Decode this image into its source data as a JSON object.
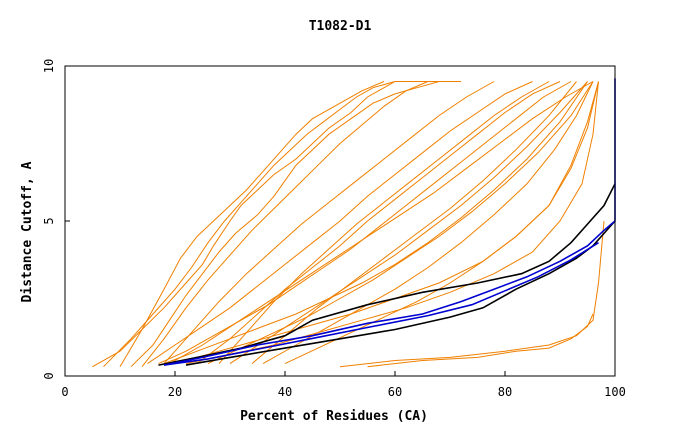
{
  "chart_data": {
    "type": "line",
    "title": "T1082-D1",
    "xlabel": "Percent of Residues (CA)",
    "ylabel": "Distance Cutoff, A",
    "xlim": [
      0,
      100
    ],
    "ylim": [
      0,
      10
    ],
    "x_ticks": [
      0,
      20,
      40,
      60,
      80,
      100
    ],
    "y_ticks": [
      0,
      5,
      10
    ],
    "grid": false,
    "legend": "none",
    "colors": {
      "orange": "#f08000",
      "black": "#000000",
      "blue": "#0000d0",
      "frame": "#000000"
    },
    "series": [
      {
        "color": "orange",
        "x": [
          5,
          10,
          14,
          18,
          22,
          25,
          27,
          30,
          32,
          35,
          38,
          42,
          45,
          48,
          52,
          55,
          58,
          60,
          62,
          64,
          66,
          68,
          70
        ],
        "y": [
          0.3,
          0.8,
          1.5,
          2.2,
          3.0,
          3.6,
          4.2,
          5.0,
          5.5,
          6.0,
          6.5,
          7.0,
          7.5,
          8.0,
          8.5,
          9.0,
          9.3,
          9.5,
          9.5,
          9.5,
          9.5,
          9.5,
          9.5
        ]
      },
      {
        "color": "orange",
        "x": [
          7,
          12,
          16,
          20,
          23,
          26,
          29,
          32,
          35,
          38,
          41,
          44,
          47,
          50,
          53,
          56,
          60
        ],
        "y": [
          0.3,
          1.2,
          2.0,
          2.8,
          3.5,
          4.3,
          5.0,
          5.6,
          6.2,
          6.8,
          7.3,
          7.8,
          8.2,
          8.6,
          9.0,
          9.3,
          9.5
        ]
      },
      {
        "color": "orange",
        "x": [
          12,
          16,
          19,
          22,
          25,
          28,
          31,
          35,
          38,
          40,
          42,
          45,
          48,
          52,
          56,
          60,
          64,
          68,
          72
        ],
        "y": [
          0.3,
          1.0,
          1.8,
          2.6,
          3.3,
          4.0,
          4.6,
          5.2,
          5.8,
          6.3,
          6.8,
          7.3,
          7.8,
          8.3,
          8.8,
          9.1,
          9.3,
          9.5,
          9.5
        ]
      },
      {
        "color": "orange",
        "x": [
          15,
          20,
          25,
          30,
          35,
          40,
          45,
          50,
          55,
          60,
          65,
          70,
          75,
          80,
          85
        ],
        "y": [
          0.4,
          1.0,
          1.6,
          2.2,
          2.9,
          3.6,
          4.3,
          5.0,
          5.8,
          6.5,
          7.2,
          7.9,
          8.5,
          9.1,
          9.5
        ]
      },
      {
        "color": "orange",
        "x": [
          17,
          22,
          27,
          32,
          37,
          42,
          47,
          52,
          57,
          62,
          67,
          72,
          77,
          82,
          87,
          92
        ],
        "y": [
          0.4,
          0.8,
          1.3,
          1.8,
          2.3,
          2.9,
          3.5,
          4.1,
          4.8,
          5.5,
          6.2,
          6.9,
          7.6,
          8.3,
          9.0,
          9.5
        ]
      },
      {
        "color": "orange",
        "x": [
          18,
          24,
          30,
          36,
          42,
          48,
          54,
          60,
          66,
          72,
          78,
          84,
          90,
          95
        ],
        "y": [
          0.4,
          0.8,
          1.2,
          1.6,
          2.0,
          2.5,
          3.0,
          3.6,
          4.3,
          5.1,
          6.0,
          7.0,
          8.2,
          9.5
        ]
      },
      {
        "color": "orange",
        "x": [
          20,
          28,
          36,
          44,
          52,
          60,
          68,
          76,
          82,
          88,
          92,
          95,
          97
        ],
        "y": [
          0.4,
          0.8,
          1.2,
          1.6,
          2.0,
          2.5,
          3.0,
          3.7,
          4.5,
          5.5,
          6.8,
          8.2,
          9.5
        ]
      },
      {
        "color": "orange",
        "x": [
          22,
          30,
          38,
          46,
          54,
          62,
          70,
          78,
          85,
          90,
          94,
          96,
          97
        ],
        "y": [
          0.4,
          0.7,
          1.0,
          1.4,
          1.8,
          2.2,
          2.7,
          3.3,
          4.0,
          5.0,
          6.2,
          7.8,
          9.5
        ]
      },
      {
        "color": "orange",
        "x": [
          10,
          14,
          18,
          21,
          24,
          27,
          30,
          33,
          36,
          39,
          42,
          45,
          50,
          54,
          58
        ],
        "y": [
          0.3,
          1.5,
          2.8,
          3.8,
          4.5,
          5.0,
          5.5,
          6.0,
          6.6,
          7.2,
          7.8,
          8.3,
          8.8,
          9.2,
          9.5
        ]
      },
      {
        "color": "orange",
        "x": [
          24,
          30,
          35,
          40,
          45,
          50,
          55,
          60,
          65,
          70,
          75,
          80,
          85,
          90
        ],
        "y": [
          0.4,
          1.2,
          2.0,
          2.8,
          3.5,
          4.2,
          5.0,
          5.7,
          6.4,
          7.1,
          7.8,
          8.5,
          9.1,
          9.5
        ]
      },
      {
        "color": "orange",
        "x": [
          28,
          33,
          38,
          43,
          48,
          53,
          58,
          63,
          68,
          73,
          78,
          83,
          88
        ],
        "y": [
          0.4,
          1.4,
          2.4,
          3.3,
          4.1,
          4.9,
          5.6,
          6.3,
          7.0,
          7.7,
          8.4,
          9.0,
          9.5
        ]
      },
      {
        "color": "orange",
        "x": [
          30,
          36,
          42,
          48,
          54,
          60,
          66,
          72,
          78,
          84,
          90,
          95
        ],
        "y": [
          0.4,
          1.1,
          1.8,
          2.5,
          3.2,
          3.9,
          4.7,
          5.5,
          6.4,
          7.4,
          8.5,
          9.5
        ]
      },
      {
        "color": "orange",
        "x": [
          14,
          18,
          22,
          26,
          30,
          34,
          38,
          42,
          46,
          50,
          54,
          58,
          62,
          66
        ],
        "y": [
          0.3,
          1.2,
          2.2,
          3.1,
          3.9,
          4.7,
          5.4,
          6.1,
          6.8,
          7.5,
          8.1,
          8.7,
          9.2,
          9.5
        ]
      },
      {
        "color": "orange",
        "x": [
          19,
          25,
          31,
          37,
          43,
          49,
          55,
          61,
          67,
          73,
          79,
          85,
          91,
          96
        ],
        "y": [
          0.4,
          1.0,
          1.7,
          2.4,
          3.1,
          3.8,
          4.5,
          5.2,
          5.9,
          6.7,
          7.5,
          8.3,
          9.0,
          9.5
        ]
      },
      {
        "color": "orange",
        "x": [
          26,
          32,
          38,
          44,
          50,
          56,
          62,
          68,
          74,
          80,
          86,
          92,
          96
        ],
        "y": [
          0.4,
          0.9,
          1.4,
          1.9,
          2.5,
          3.1,
          3.8,
          4.5,
          5.3,
          6.2,
          7.2,
          8.4,
          9.5
        ]
      },
      {
        "color": "orange",
        "x": [
          34,
          40,
          46,
          52,
          58,
          64,
          70,
          76,
          82,
          88,
          93
        ],
        "y": [
          0.4,
          1.3,
          2.2,
          3.0,
          3.8,
          4.6,
          5.4,
          6.3,
          7.3,
          8.4,
          9.5
        ]
      },
      {
        "color": "orange",
        "x": [
          18,
          23,
          28,
          33,
          38,
          43,
          48,
          53,
          58,
          63,
          68,
          73,
          78
        ],
        "y": [
          0.4,
          1.4,
          2.4,
          3.3,
          4.1,
          4.9,
          5.6,
          6.3,
          7.0,
          7.7,
          8.4,
          9.0,
          9.5
        ]
      },
      {
        "color": "orange",
        "x": [
          36,
          42,
          48,
          54,
          60,
          66,
          72,
          78,
          84,
          89,
          93,
          96
        ],
        "y": [
          0.4,
          1.0,
          1.6,
          2.2,
          2.8,
          3.5,
          4.3,
          5.2,
          6.2,
          7.3,
          8.4,
          9.5
        ]
      },
      {
        "color": "orange",
        "x": [
          40,
          46,
          52,
          58,
          64,
          70,
          76,
          82,
          88,
          92,
          95,
          97
        ],
        "y": [
          0.4,
          0.9,
          1.4,
          1.9,
          2.4,
          3.0,
          3.7,
          4.5,
          5.5,
          6.7,
          8.0,
          9.5
        ]
      },
      {
        "color": "orange",
        "x": [
          50,
          60,
          70,
          80,
          88,
          93,
          96,
          97,
          98
        ],
        "y": [
          0.3,
          0.5,
          0.6,
          0.8,
          1.0,
          1.3,
          1.8,
          3.0,
          5.0
        ]
      },
      {
        "color": "orange",
        "x": [
          55,
          65,
          75,
          82,
          88,
          92,
          95,
          96
        ],
        "y": [
          0.3,
          0.5,
          0.6,
          0.8,
          0.9,
          1.2,
          1.6,
          2.0
        ]
      },
      {
        "color": "black",
        "x": [
          17,
          24,
          32,
          40,
          45,
          55,
          65,
          75,
          83,
          88,
          92,
          95,
          98,
          100
        ],
        "y": [
          0.35,
          0.6,
          0.9,
          1.3,
          1.8,
          2.3,
          2.7,
          3.0,
          3.3,
          3.7,
          4.3,
          4.9,
          5.5,
          6.2
        ]
      },
      {
        "color": "black",
        "x": [
          22,
          30,
          40,
          50,
          60,
          70,
          76,
          82,
          88,
          93,
          96,
          98,
          100
        ],
        "y": [
          0.35,
          0.6,
          0.9,
          1.2,
          1.5,
          1.9,
          2.2,
          2.8,
          3.3,
          3.8,
          4.2,
          4.6,
          5.0
        ]
      },
      {
        "color": "blue",
        "x": [
          18,
          25,
          35,
          45,
          55,
          65,
          72,
          78,
          84,
          90,
          95,
          98,
          100,
          100
        ],
        "y": [
          0.35,
          0.6,
          1.0,
          1.3,
          1.7,
          2.0,
          2.4,
          2.8,
          3.2,
          3.7,
          4.2,
          4.7,
          5.0,
          9.6
        ]
      },
      {
        "color": "blue",
        "x": [
          18,
          26,
          36,
          46,
          56,
          66,
          74,
          80,
          86,
          92,
          97
        ],
        "y": [
          0.35,
          0.55,
          0.9,
          1.25,
          1.6,
          1.95,
          2.3,
          2.75,
          3.2,
          3.75,
          4.3
        ]
      }
    ]
  }
}
